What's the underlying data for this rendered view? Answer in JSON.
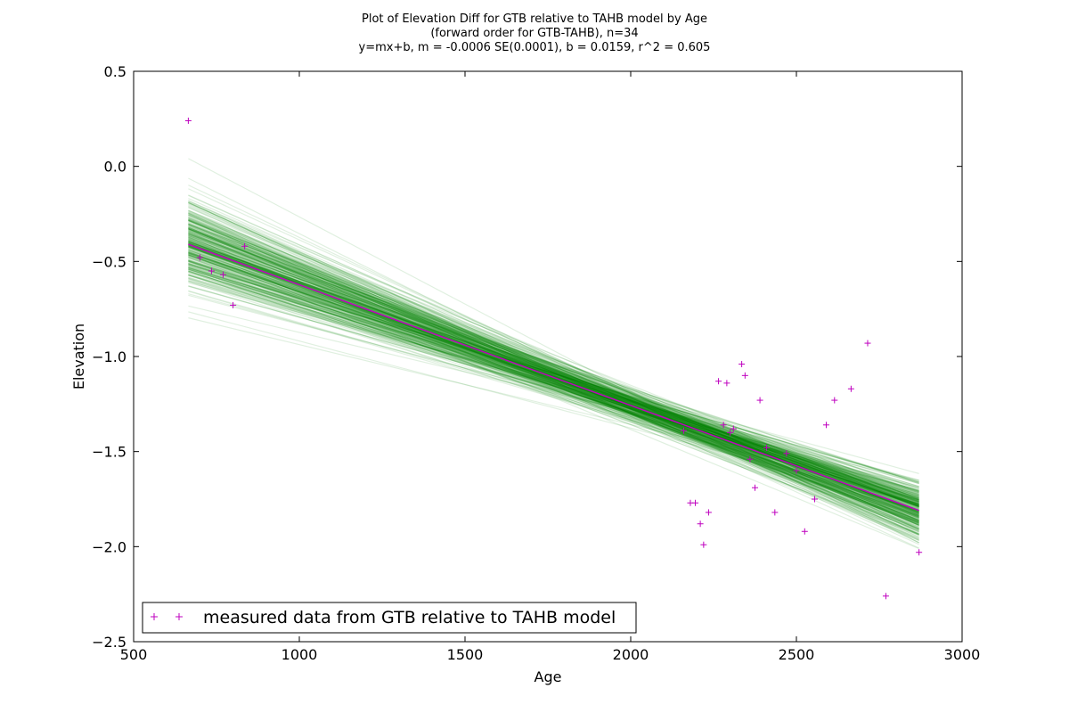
{
  "chart_data": {
    "type": "scatter",
    "title": [
      "Plot of Elevation Diff for GTB relative to TAHB model by Age",
      "(forward order for GTB-TAHB), n=34",
      "y=mx+b, m = -0.0006 SE(0.0001), b = 0.0159, r^2 = 0.605"
    ],
    "xlabel": "Age",
    "ylabel": "Elevation",
    "xlim": [
      500,
      3000
    ],
    "ylim": [
      -2.5,
      0.5
    ],
    "xticks": [
      500,
      1000,
      1500,
      2000,
      2500,
      3000
    ],
    "xtick_labels": [
      "500",
      "1000",
      "1500",
      "2000",
      "2500",
      "3000"
    ],
    "yticks": [
      0.5,
      0.0,
      -0.5,
      -1.0,
      -1.5,
      -2.0,
      -2.5
    ],
    "ytick_labels": [
      "0.5",
      "0.0",
      "−0.5",
      "−1.0",
      "−1.5",
      "−2.0",
      "−2.5"
    ],
    "grid": false,
    "legend_position": "lower-left",
    "legend": [
      "measured data from GTB relative to TAHB model"
    ],
    "series": [
      {
        "name": "measured data from GTB relative to TAHB model",
        "kind": "scatter",
        "marker": "+",
        "color": "#bf00bf",
        "points": [
          [
            665,
            0.24
          ],
          [
            700,
            -0.48
          ],
          [
            735,
            -0.55
          ],
          [
            770,
            -0.57
          ],
          [
            800,
            -0.73
          ],
          [
            835,
            -0.42
          ],
          [
            2160,
            -1.39
          ],
          [
            2180,
            -1.77
          ],
          [
            2195,
            -1.77
          ],
          [
            2210,
            -1.88
          ],
          [
            2220,
            -1.99
          ],
          [
            2235,
            -1.82
          ],
          [
            2265,
            -1.13
          ],
          [
            2280,
            -1.36
          ],
          [
            2290,
            -1.14
          ],
          [
            2310,
            -1.38
          ],
          [
            2335,
            -1.04
          ],
          [
            2345,
            -1.1
          ],
          [
            2360,
            -1.54
          ],
          [
            2375,
            -1.69
          ],
          [
            2390,
            -1.23
          ],
          [
            2410,
            -1.48
          ],
          [
            2435,
            -1.82
          ],
          [
            2470,
            -1.51
          ],
          [
            2500,
            -1.6
          ],
          [
            2525,
            -1.92
          ],
          [
            2555,
            -1.75
          ],
          [
            2590,
            -1.36
          ],
          [
            2615,
            -1.23
          ],
          [
            2665,
            -1.17
          ],
          [
            2715,
            -0.93
          ],
          [
            2770,
            -2.26
          ],
          [
            2870,
            -2.03
          ],
          [
            2300,
            -1.4
          ]
        ]
      },
      {
        "kind": "line",
        "color": "#bf00bf",
        "x": [
          665,
          2870
        ],
        "y": [
          -0.41,
          -1.81
        ]
      }
    ],
    "bootstrap_lines": {
      "color": "#008000",
      "opacity": 0.12,
      "count": 350,
      "x_range": [
        665,
        2870
      ],
      "pivot_age": 2100,
      "pivot_elevation": -1.32,
      "pivot_spread": 0.04,
      "slope_mean": -0.000638,
      "slope_sd": 8e-05
    }
  }
}
